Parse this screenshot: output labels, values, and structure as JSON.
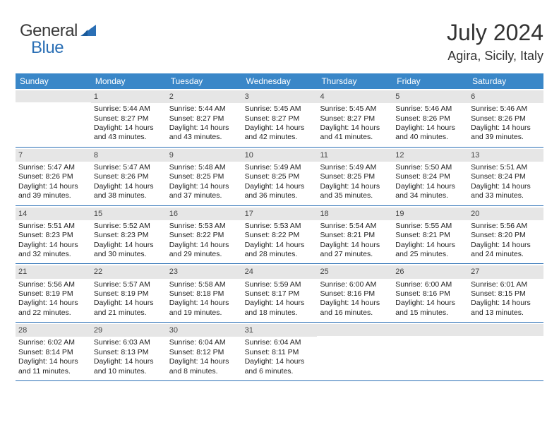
{
  "logo": {
    "general": "General",
    "blue": "Blue"
  },
  "header": {
    "month_title": "July 2024",
    "location": "Agira, Sicily, Italy"
  },
  "colors": {
    "header_bg": "#3a87c8",
    "header_text": "#ffffff",
    "daynum_bg": "#e6e6e6",
    "border": "#2a6fb5",
    "text": "#222222"
  },
  "weekdays": [
    "Sunday",
    "Monday",
    "Tuesday",
    "Wednesday",
    "Thursday",
    "Friday",
    "Saturday"
  ],
  "weeks": [
    [
      {
        "n": "",
        "sunrise": "",
        "sunset": "",
        "daylight": ""
      },
      {
        "n": "1",
        "sunrise": "Sunrise: 5:44 AM",
        "sunset": "Sunset: 8:27 PM",
        "daylight": "Daylight: 14 hours and 43 minutes."
      },
      {
        "n": "2",
        "sunrise": "Sunrise: 5:44 AM",
        "sunset": "Sunset: 8:27 PM",
        "daylight": "Daylight: 14 hours and 43 minutes."
      },
      {
        "n": "3",
        "sunrise": "Sunrise: 5:45 AM",
        "sunset": "Sunset: 8:27 PM",
        "daylight": "Daylight: 14 hours and 42 minutes."
      },
      {
        "n": "4",
        "sunrise": "Sunrise: 5:45 AM",
        "sunset": "Sunset: 8:27 PM",
        "daylight": "Daylight: 14 hours and 41 minutes."
      },
      {
        "n": "5",
        "sunrise": "Sunrise: 5:46 AM",
        "sunset": "Sunset: 8:26 PM",
        "daylight": "Daylight: 14 hours and 40 minutes."
      },
      {
        "n": "6",
        "sunrise": "Sunrise: 5:46 AM",
        "sunset": "Sunset: 8:26 PM",
        "daylight": "Daylight: 14 hours and 39 minutes."
      }
    ],
    [
      {
        "n": "7",
        "sunrise": "Sunrise: 5:47 AM",
        "sunset": "Sunset: 8:26 PM",
        "daylight": "Daylight: 14 hours and 39 minutes."
      },
      {
        "n": "8",
        "sunrise": "Sunrise: 5:47 AM",
        "sunset": "Sunset: 8:26 PM",
        "daylight": "Daylight: 14 hours and 38 minutes."
      },
      {
        "n": "9",
        "sunrise": "Sunrise: 5:48 AM",
        "sunset": "Sunset: 8:25 PM",
        "daylight": "Daylight: 14 hours and 37 minutes."
      },
      {
        "n": "10",
        "sunrise": "Sunrise: 5:49 AM",
        "sunset": "Sunset: 8:25 PM",
        "daylight": "Daylight: 14 hours and 36 minutes."
      },
      {
        "n": "11",
        "sunrise": "Sunrise: 5:49 AM",
        "sunset": "Sunset: 8:25 PM",
        "daylight": "Daylight: 14 hours and 35 minutes."
      },
      {
        "n": "12",
        "sunrise": "Sunrise: 5:50 AM",
        "sunset": "Sunset: 8:24 PM",
        "daylight": "Daylight: 14 hours and 34 minutes."
      },
      {
        "n": "13",
        "sunrise": "Sunrise: 5:51 AM",
        "sunset": "Sunset: 8:24 PM",
        "daylight": "Daylight: 14 hours and 33 minutes."
      }
    ],
    [
      {
        "n": "14",
        "sunrise": "Sunrise: 5:51 AM",
        "sunset": "Sunset: 8:23 PM",
        "daylight": "Daylight: 14 hours and 32 minutes."
      },
      {
        "n": "15",
        "sunrise": "Sunrise: 5:52 AM",
        "sunset": "Sunset: 8:23 PM",
        "daylight": "Daylight: 14 hours and 30 minutes."
      },
      {
        "n": "16",
        "sunrise": "Sunrise: 5:53 AM",
        "sunset": "Sunset: 8:22 PM",
        "daylight": "Daylight: 14 hours and 29 minutes."
      },
      {
        "n": "17",
        "sunrise": "Sunrise: 5:53 AM",
        "sunset": "Sunset: 8:22 PM",
        "daylight": "Daylight: 14 hours and 28 minutes."
      },
      {
        "n": "18",
        "sunrise": "Sunrise: 5:54 AM",
        "sunset": "Sunset: 8:21 PM",
        "daylight": "Daylight: 14 hours and 27 minutes."
      },
      {
        "n": "19",
        "sunrise": "Sunrise: 5:55 AM",
        "sunset": "Sunset: 8:21 PM",
        "daylight": "Daylight: 14 hours and 25 minutes."
      },
      {
        "n": "20",
        "sunrise": "Sunrise: 5:56 AM",
        "sunset": "Sunset: 8:20 PM",
        "daylight": "Daylight: 14 hours and 24 minutes."
      }
    ],
    [
      {
        "n": "21",
        "sunrise": "Sunrise: 5:56 AM",
        "sunset": "Sunset: 8:19 PM",
        "daylight": "Daylight: 14 hours and 22 minutes."
      },
      {
        "n": "22",
        "sunrise": "Sunrise: 5:57 AM",
        "sunset": "Sunset: 8:19 PM",
        "daylight": "Daylight: 14 hours and 21 minutes."
      },
      {
        "n": "23",
        "sunrise": "Sunrise: 5:58 AM",
        "sunset": "Sunset: 8:18 PM",
        "daylight": "Daylight: 14 hours and 19 minutes."
      },
      {
        "n": "24",
        "sunrise": "Sunrise: 5:59 AM",
        "sunset": "Sunset: 8:17 PM",
        "daylight": "Daylight: 14 hours and 18 minutes."
      },
      {
        "n": "25",
        "sunrise": "Sunrise: 6:00 AM",
        "sunset": "Sunset: 8:16 PM",
        "daylight": "Daylight: 14 hours and 16 minutes."
      },
      {
        "n": "26",
        "sunrise": "Sunrise: 6:00 AM",
        "sunset": "Sunset: 8:16 PM",
        "daylight": "Daylight: 14 hours and 15 minutes."
      },
      {
        "n": "27",
        "sunrise": "Sunrise: 6:01 AM",
        "sunset": "Sunset: 8:15 PM",
        "daylight": "Daylight: 14 hours and 13 minutes."
      }
    ],
    [
      {
        "n": "28",
        "sunrise": "Sunrise: 6:02 AM",
        "sunset": "Sunset: 8:14 PM",
        "daylight": "Daylight: 14 hours and 11 minutes."
      },
      {
        "n": "29",
        "sunrise": "Sunrise: 6:03 AM",
        "sunset": "Sunset: 8:13 PM",
        "daylight": "Daylight: 14 hours and 10 minutes."
      },
      {
        "n": "30",
        "sunrise": "Sunrise: 6:04 AM",
        "sunset": "Sunset: 8:12 PM",
        "daylight": "Daylight: 14 hours and 8 minutes."
      },
      {
        "n": "31",
        "sunrise": "Sunrise: 6:04 AM",
        "sunset": "Sunset: 8:11 PM",
        "daylight": "Daylight: 14 hours and 6 minutes."
      },
      {
        "n": "",
        "sunrise": "",
        "sunset": "",
        "daylight": ""
      },
      {
        "n": "",
        "sunrise": "",
        "sunset": "",
        "daylight": ""
      },
      {
        "n": "",
        "sunrise": "",
        "sunset": "",
        "daylight": ""
      }
    ]
  ]
}
